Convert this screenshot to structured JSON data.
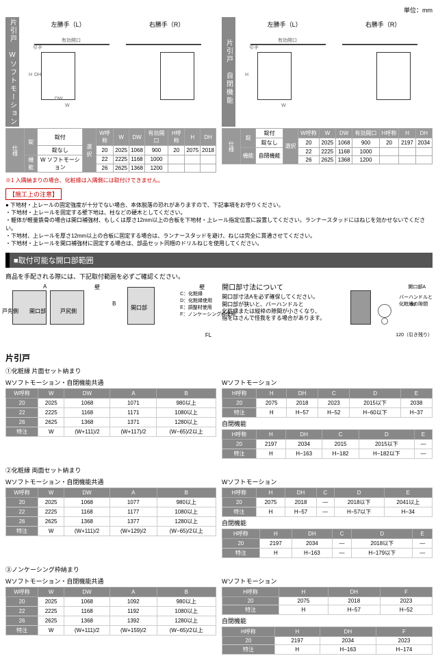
{
  "unit": "単位：mm",
  "products": [
    {
      "name": "片引戸　Wソフトモーション",
      "leftHand": "左勝手（L）",
      "rightHand": "右勝手（R）",
      "opening": "有効開口",
      "handle": "引手"
    },
    {
      "name": "片引戸　自閉機能",
      "leftHand": "左勝手（L）",
      "rightHand": "右勝手（R）",
      "opening": "有効開口",
      "handle": "引手"
    }
  ],
  "specHeaders": [
    "W呼称",
    "W",
    "DW",
    "有効開口",
    "H呼称",
    "H",
    "DH"
  ],
  "specTable1": {
    "lockHeader": "錠",
    "lock1": "錠付",
    "lock2": "錠なし",
    "funcHeader": "機能",
    "func": "W ソフトモーション",
    "select": "選択",
    "circle": "○",
    "rows": [
      [
        "20",
        "2025",
        "1068",
        "900",
        "20",
        "2075",
        "2018"
      ],
      [
        "22",
        "2225",
        "1168",
        "1000",
        "",
        "",
        ""
      ],
      [
        "26",
        "2625",
        "1368",
        "1200",
        "",
        "",
        ""
      ]
    ]
  },
  "specTable2": {
    "lock1": "錠付",
    "lock2": "錠なし",
    "func": "自閉機能",
    "circle": "○",
    "rows": [
      [
        "20",
        "2025",
        "1068",
        "900",
        "20",
        "2197",
        "2034"
      ],
      [
        "22",
        "2225",
        "1168",
        "1000",
        "",
        "",
        ""
      ],
      [
        "26",
        "2625",
        "1368",
        "1200",
        "",
        "",
        ""
      ]
    ]
  },
  "redNote": "※1 入隅納まりの場合、化粧縁は入隅側には取付けできません。",
  "cautionTitle": "【施工上の注意】",
  "bullets": [
    "● 下地材・上レールの固定強度が十分でない場合、本体脱落の恐れがありますので、下記事項をお守りください。",
    "・下地材・上レールを固定する壁下地は、柱などの硬木としてください。",
    "・躯体が軽量鉄骨の場合は開口補強材、もしくは厚さ12mm以上の合板を下地材・上レール指定位置に設置してください。ランナースタッドにはねじを効かせないでください。",
    "・下地材、上レールを厚さ12mm以上の合板に固定する場合は、ランナースタッドを避け、ねじは完全に貫通させてください。",
    "・下地材・上レールを開口補強材に固定する場合は、部品セット同梱のドリルねじを使用してください。"
  ],
  "sectionTitle": "■取付可能な開口部範囲",
  "instruction": "商品を手配される際には、下記取付範囲を必ずご確認ください。",
  "diagLabels": {
    "saki": "戸先側",
    "kuchi": "開口部",
    "shiri": "戸尻側",
    "kabe": "壁",
    "A": "A",
    "B": "B",
    "FL": "FL",
    "legend": "C：化粧縁\nD：化粧縁使用\nE：調整材使用\nF：ノンケーシング枠使用"
  },
  "openingInfo": {
    "title": "開口部寸法について",
    "text": "開口部寸法Aを必ず確保してください。\n開口部が狭いと、バーハンドルと\n化粧縁または縦枠の隙間が小さくなり、\n指をはさんで怪我をする場合があります。",
    "kuchiA": "開口部A",
    "barHandle": "バーハンドルと\n化粧縁の隙間",
    "pull": "120（引き残り）"
  },
  "groupTitle": "片引戸",
  "sections": [
    {
      "title": "①化粧縁 片面セット納まり",
      "subtitle": "Wソフトモーション・自閉機能共通",
      "leftTable": {
        "headers": [
          "W呼称",
          "W",
          "DW",
          "A",
          "B"
        ],
        "rows": [
          [
            "20",
            "2025",
            "1068",
            "1071",
            "980以上"
          ],
          [
            "22",
            "2225",
            "1168",
            "1171",
            "1080以上"
          ],
          [
            "26",
            "2625",
            "1368",
            "1371",
            "1280以上"
          ],
          [
            "特注",
            "W",
            "(W+111)/2",
            "(W+117)/2",
            "(W−65)/2以上"
          ]
        ]
      },
      "rightTables": [
        {
          "title": "Wソフトモーション",
          "headers": [
            "H呼称",
            "H",
            "DH",
            "C",
            "D",
            "E"
          ],
          "rows": [
            [
              "20",
              "2075",
              "2018",
              "2023",
              "2015以下",
              "2038"
            ],
            [
              "特注",
              "H",
              "H−57",
              "H−52",
              "H−60以下",
              "H−37"
            ]
          ]
        },
        {
          "title": "自閉機能",
          "headers": [
            "H呼称",
            "H",
            "DH",
            "C",
            "D",
            "E"
          ],
          "rows": [
            [
              "20",
              "2197",
              "2034",
              "2015",
              "2015以下",
              "—"
            ],
            [
              "特注",
              "H",
              "H−163",
              "H−182",
              "H−182以下",
              "—"
            ]
          ]
        }
      ]
    },
    {
      "title": "②化粧縁 両面セット納まり",
      "subtitle": "Wソフトモーション・自閉機能共通",
      "leftTable": {
        "headers": [
          "W呼称",
          "W",
          "DW",
          "A",
          "B"
        ],
        "rows": [
          [
            "20",
            "2025",
            "1068",
            "1077",
            "980以上"
          ],
          [
            "22",
            "2225",
            "1168",
            "1177",
            "1080以上"
          ],
          [
            "26",
            "2625",
            "1368",
            "1377",
            "1280以上"
          ],
          [
            "特注",
            "W",
            "(W+111)/2",
            "(W+129)/2",
            "(W−65)/2以上"
          ]
        ]
      },
      "rightTables": [
        {
          "title": "Wソフトモーション",
          "headers": [
            "H呼称",
            "H",
            "DH",
            "C",
            "D",
            "E"
          ],
          "rows": [
            [
              "20",
              "2075",
              "2018",
              "—",
              "2018以下",
              "2041以上"
            ],
            [
              "特注",
              "H",
              "H−57",
              "—",
              "H−57以下",
              "H−34"
            ]
          ]
        },
        {
          "title": "自閉機能",
          "headers": [
            "H呼称",
            "H",
            "DH",
            "C",
            "D",
            "E"
          ],
          "rows": [
            [
              "20",
              "2197",
              "2034",
              "—",
              "2018以下",
              "—"
            ],
            [
              "特注",
              "H",
              "H−163",
              "—",
              "H−179以下",
              "—"
            ]
          ]
        }
      ]
    },
    {
      "title": "③ノンケーシング枠納まり",
      "subtitle": "Wソフトモーション・自閉機能共通",
      "leftTable": {
        "headers": [
          "W呼称",
          "W",
          "DW",
          "A",
          "B"
        ],
        "rows": [
          [
            "20",
            "2025",
            "1068",
            "1092",
            "980以上"
          ],
          [
            "22",
            "2225",
            "1168",
            "1192",
            "1080以上"
          ],
          [
            "26",
            "2625",
            "1368",
            "1392",
            "1280以上"
          ],
          [
            "特注",
            "W",
            "(W+111)/2",
            "(W+159)/2",
            "(W−65)/2以上"
          ]
        ]
      },
      "rightTables": [
        {
          "title": "Wソフトモーション",
          "headers": [
            "H呼称",
            "H",
            "DH",
            "F"
          ],
          "rows": [
            [
              "20",
              "2075",
              "2018",
              "2023"
            ],
            [
              "特注",
              "H",
              "H−57",
              "H−52"
            ]
          ]
        },
        {
          "title": "自閉機能",
          "headers": [
            "H呼称",
            "H",
            "DH",
            "F"
          ],
          "rows": [
            [
              "20",
              "2197",
              "2034",
              "2023"
            ],
            [
              "特注",
              "H",
              "H−163",
              "H−174"
            ]
          ]
        }
      ]
    }
  ]
}
